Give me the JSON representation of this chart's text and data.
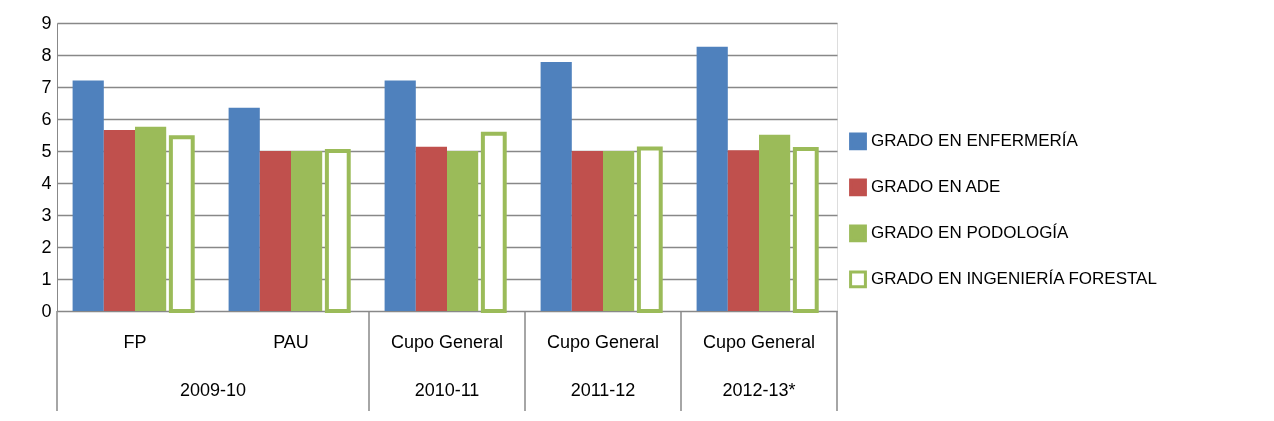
{
  "chart_data": {
    "type": "bar",
    "categories": [
      "FP",
      "PAU",
      "Cupo General",
      "Cupo General",
      "Cupo General"
    ],
    "annotations": [
      "2009-10",
      "2010-11",
      "2011-12",
      "2012-13*"
    ],
    "series": [
      {
        "name": "GRADO EN ENFERMERÍA",
        "color": "#4f81bd",
        "values": [
          7.2,
          6.35,
          7.2,
          7.78,
          8.26
        ]
      },
      {
        "name": "GRADO EN ADE",
        "color": "#c0504d",
        "values": [
          5.66,
          5.0,
          5.13,
          5.0,
          5.02
        ]
      },
      {
        "name": "GRADO EN PODOLOGÍA",
        "color": "#9bbb59",
        "values": [
          5.76,
          5.0,
          5.0,
          5.0,
          5.51
        ]
      },
      {
        "name": "GRADO EN INGENIERÍA FORESTAL",
        "color": "#9bbb59",
        "values": [
          5.43,
          5.0,
          5.54,
          5.08,
          5.06
        ]
      }
    ],
    "ylim": [
      0,
      9
    ],
    "yticks": [
      0,
      1,
      2,
      3,
      4,
      5,
      6,
      7,
      8,
      9
    ],
    "grid": "y",
    "legend": "right"
  }
}
